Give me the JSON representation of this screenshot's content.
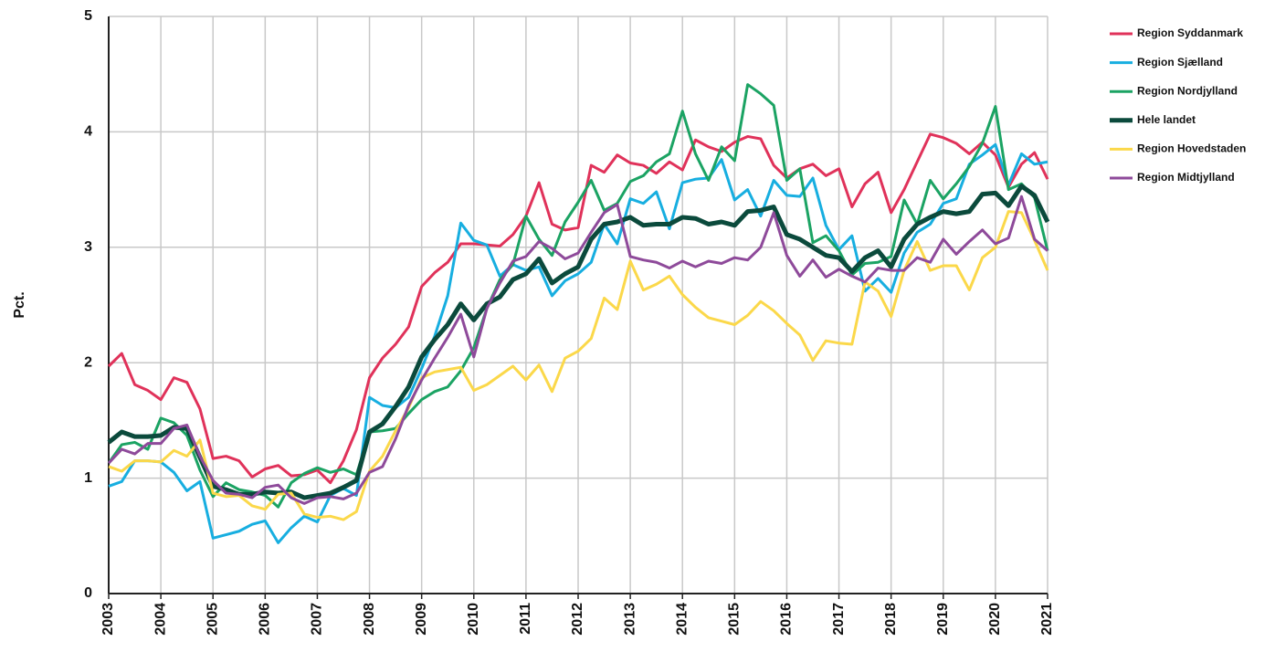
{
  "chart_data": {
    "type": "line",
    "y_label": "Pct.",
    "x": [
      2003,
      2003.25,
      2003.5,
      2003.75,
      2004,
      2004.25,
      2004.5,
      2004.75,
      2005,
      2005.25,
      2005.5,
      2005.75,
      2006,
      2006.25,
      2006.5,
      2006.75,
      2007,
      2007.25,
      2007.5,
      2007.75,
      2008,
      2008.25,
      2008.5,
      2008.75,
      2009,
      2009.25,
      2009.5,
      2009.75,
      2010,
      2010.25,
      2010.5,
      2010.75,
      2011,
      2011.25,
      2011.5,
      2011.75,
      2012,
      2012.25,
      2012.5,
      2012.75,
      2013,
      2013.25,
      2013.5,
      2013.75,
      2014,
      2014.25,
      2014.5,
      2014.75,
      2015,
      2015.25,
      2015.5,
      2015.75,
      2016,
      2016.25,
      2016.5,
      2016.75,
      2017,
      2017.25,
      2017.5,
      2017.75,
      2018,
      2018.25,
      2018.5,
      2018.75,
      2019,
      2019.25,
      2019.5,
      2019.75,
      2020,
      2020.25,
      2020.5,
      2020.75,
      2021
    ],
    "xlim": [
      2003,
      2021
    ],
    "xticks": [
      2003,
      2004,
      2005,
      2006,
      2007,
      2008,
      2009,
      2010,
      2011,
      2012,
      2013,
      2014,
      2015,
      2016,
      2017,
      2018,
      2019,
      2020,
      2021
    ],
    "ylim": [
      0,
      5
    ],
    "yticks": [
      0,
      1,
      2,
      3,
      4,
      5
    ],
    "grid": true,
    "series": [
      {
        "name": "Region Syddanmark",
        "color": "#e0325a",
        "line_width": 3,
        "values": [
          1.97,
          2.08,
          1.81,
          1.76,
          1.68,
          1.87,
          1.83,
          1.6,
          1.17,
          1.19,
          1.15,
          1.01,
          1.08,
          1.11,
          1.02,
          1.03,
          1.07,
          0.96,
          1.15,
          1.42,
          1.87,
          2.04,
          2.16,
          2.31,
          2.66,
          2.78,
          2.87,
          3.03,
          3.03,
          3.02,
          3.01,
          3.11,
          3.27,
          3.56,
          3.2,
          3.15,
          3.17,
          3.71,
          3.65,
          3.8,
          3.73,
          3.71,
          3.64,
          3.74,
          3.67,
          3.93,
          3.87,
          3.83,
          3.91,
          3.96,
          3.94,
          3.71,
          3.6,
          3.68,
          3.72,
          3.62,
          3.68,
          3.35,
          3.55,
          3.65,
          3.3,
          3.5,
          3.74,
          3.98,
          3.95,
          3.9,
          3.81,
          3.91,
          3.8,
          3.52,
          3.72,
          3.82,
          3.59
        ]
      },
      {
        "name": "Region Sjælland",
        "color": "#17aee0",
        "line_width": 3,
        "values": [
          0.93,
          0.97,
          1.15,
          1.15,
          1.14,
          1.05,
          0.89,
          0.97,
          0.48,
          0.51,
          0.54,
          0.6,
          0.63,
          0.44,
          0.57,
          0.67,
          0.62,
          0.85,
          0.91,
          0.85,
          1.7,
          1.63,
          1.61,
          1.7,
          1.95,
          2.23,
          2.58,
          3.21,
          3.06,
          3.02,
          2.75,
          2.85,
          2.8,
          2.83,
          2.58,
          2.71,
          2.77,
          2.87,
          3.2,
          3.03,
          3.42,
          3.38,
          3.48,
          3.16,
          3.56,
          3.59,
          3.6,
          3.76,
          3.41,
          3.5,
          3.27,
          3.58,
          3.45,
          3.44,
          3.6,
          3.19,
          2.98,
          3.1,
          2.62,
          2.73,
          2.61,
          2.95,
          3.13,
          3.2,
          3.38,
          3.42,
          3.72,
          3.8,
          3.89,
          3.54,
          3.81,
          3.72,
          3.74
        ]
      },
      {
        "name": "Region Nordjylland",
        "color": "#1ba363",
        "line_width": 3,
        "values": [
          1.13,
          1.29,
          1.31,
          1.25,
          1.52,
          1.48,
          1.37,
          1.07,
          0.84,
          0.96,
          0.9,
          0.88,
          0.85,
          0.75,
          0.96,
          1.04,
          1.09,
          1.05,
          1.08,
          1.03,
          1.4,
          1.41,
          1.43,
          1.56,
          1.68,
          1.75,
          1.79,
          1.93,
          2.13,
          2.47,
          2.72,
          2.85,
          3.27,
          3.07,
          2.93,
          3.22,
          3.39,
          3.58,
          3.32,
          3.38,
          3.57,
          3.62,
          3.74,
          3.81,
          4.18,
          3.81,
          3.58,
          3.87,
          3.75,
          4.41,
          4.33,
          4.23,
          3.58,
          3.68,
          3.04,
          3.1,
          2.97,
          2.76,
          2.86,
          2.87,
          2.92,
          3.41,
          3.2,
          3.58,
          3.42,
          3.55,
          3.7,
          3.9,
          4.22,
          3.5,
          3.55,
          3.43,
          2.97
        ]
      },
      {
        "name": "Hele landet",
        "color": "#0b4a3c",
        "line_width": 5,
        "values": [
          1.31,
          1.4,
          1.36,
          1.36,
          1.37,
          1.44,
          1.43,
          1.18,
          0.93,
          0.9,
          0.86,
          0.86,
          0.88,
          0.87,
          0.88,
          0.83,
          0.85,
          0.87,
          0.92,
          0.98,
          1.4,
          1.47,
          1.62,
          1.79,
          2.05,
          2.2,
          2.33,
          2.51,
          2.37,
          2.51,
          2.57,
          2.72,
          2.77,
          2.9,
          2.69,
          2.77,
          2.83,
          3.07,
          3.2,
          3.22,
          3.26,
          3.19,
          3.2,
          3.2,
          3.26,
          3.25,
          3.2,
          3.22,
          3.19,
          3.31,
          3.32,
          3.35,
          3.11,
          3.07,
          3.0,
          2.93,
          2.91,
          2.79,
          2.91,
          2.97,
          2.83,
          3.07,
          3.2,
          3.26,
          3.31,
          3.29,
          3.31,
          3.46,
          3.47,
          3.36,
          3.53,
          3.45,
          3.22
        ]
      },
      {
        "name": "Region Hovedstaden",
        "color": "#fbd84a",
        "line_width": 3,
        "values": [
          1.1,
          1.06,
          1.15,
          1.15,
          1.14,
          1.24,
          1.19,
          1.33,
          0.87,
          0.84,
          0.85,
          0.76,
          0.73,
          0.86,
          0.87,
          0.69,
          0.66,
          0.67,
          0.64,
          0.71,
          1.06,
          1.19,
          1.41,
          1.61,
          1.87,
          1.92,
          1.94,
          1.96,
          1.76,
          1.81,
          1.89,
          1.97,
          1.85,
          1.98,
          1.75,
          2.04,
          2.1,
          2.21,
          2.56,
          2.46,
          2.88,
          2.63,
          2.68,
          2.75,
          2.59,
          2.48,
          2.39,
          2.36,
          2.33,
          2.41,
          2.53,
          2.45,
          2.34,
          2.24,
          2.02,
          2.19,
          2.17,
          2.16,
          2.7,
          2.62,
          2.4,
          2.8,
          3.05,
          2.8,
          2.84,
          2.84,
          2.63,
          2.91,
          3.0,
          3.31,
          3.3,
          3.06,
          2.8
        ]
      },
      {
        "name": "Region Midtjylland",
        "color": "#8e4a9a",
        "line_width": 3,
        "values": [
          1.13,
          1.25,
          1.21,
          1.3,
          1.3,
          1.43,
          1.46,
          1.19,
          0.98,
          0.87,
          0.86,
          0.83,
          0.92,
          0.94,
          0.83,
          0.78,
          0.83,
          0.84,
          0.82,
          0.87,
          1.05,
          1.1,
          1.34,
          1.63,
          1.85,
          2.04,
          2.22,
          2.42,
          2.05,
          2.47,
          2.69,
          2.88,
          2.92,
          3.05,
          2.99,
          2.9,
          2.95,
          3.13,
          3.3,
          3.37,
          2.92,
          2.89,
          2.87,
          2.82,
          2.88,
          2.83,
          2.88,
          2.86,
          2.91,
          2.89,
          3.0,
          3.3,
          2.93,
          2.75,
          2.89,
          2.74,
          2.81,
          2.75,
          2.7,
          2.82,
          2.8,
          2.8,
          2.91,
          2.87,
          3.07,
          2.94,
          3.05,
          3.15,
          3.03,
          3.08,
          3.44,
          3.07,
          2.97
        ]
      }
    ]
  }
}
